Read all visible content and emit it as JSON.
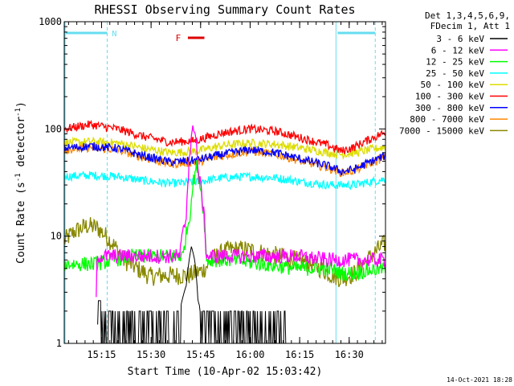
{
  "chart_data": {
    "type": "line",
    "title": "RHESSI Observing Summary Count Rates",
    "xlabel": "Start Time (10-Apr-02 15:03:42)",
    "ylabel_main": "Count Rate (s",
    "ylabel_sup1": "-1",
    "ylabel_mid": " detector",
    "ylabel_sup2": "-1",
    "ylabel_end": ")",
    "y_scale": "log",
    "ylim": [
      1,
      1000
    ],
    "xlim": [
      "15:03:42",
      "16:41:00"
    ],
    "x_ticks": [
      "15:15",
      "15:30",
      "15:45",
      "16:00",
      "16:15",
      "16:30"
    ],
    "x_tick_minutes": [
      11.3,
      26.3,
      41.3,
      56.3,
      71.3,
      86.3
    ],
    "x_range_minutes": [
      0,
      97.3
    ],
    "y_ticks": [
      "1",
      "10",
      "100",
      "1000"
    ],
    "y_tick_values": [
      1,
      10,
      100,
      1000
    ],
    "legend_header": [
      "Det 1,3,4,5,6,9,",
      "FDecim 1, Att 1"
    ],
    "legend_placement": "right",
    "timestamp": "14-Oct-2021 18:28",
    "flags": [
      {
        "label": "N",
        "start_min": 0,
        "end_min": 13.0,
        "color": "#66ddee"
      },
      {
        "label": "",
        "start_min": 82.3,
        "end_min": 94.2,
        "color": "#66ddee"
      },
      {
        "label": "F",
        "start_min": 35.5,
        "end_min": 40.5,
        "color": "#dd0000"
      }
    ],
    "series": [
      {
        "name": "3 - 6 keV",
        "color": "#000000",
        "x": [
          0,
          10,
          10.2,
          11,
          11.5,
          16,
          19,
          26,
          33,
          35,
          37,
          38.5,
          39.5,
          40.5,
          42,
          46,
          53,
          60,
          65,
          68,
          97
        ],
        "values": [
          0,
          0,
          2.5,
          2.5,
          1.6,
          1.7,
          1.7,
          1.7,
          1.7,
          2.0,
          3.5,
          8.0,
          6.0,
          2.5,
          1.7,
          1.6,
          1.6,
          1.6,
          1.6,
          0,
          0
        ]
      },
      {
        "name": "6 - 12 keV",
        "color": "#ff00ff",
        "x": [
          0,
          9.5,
          10,
          13,
          20,
          30,
          35,
          37,
          38.5,
          39.5,
          40.5,
          43,
          50,
          60,
          70,
          80,
          85,
          92,
          97
        ],
        "values": [
          0,
          0,
          6.5,
          6.5,
          6.5,
          6.5,
          6.5,
          15,
          80,
          110,
          40,
          6.5,
          6.5,
          6.5,
          6.5,
          6.0,
          6.0,
          6.0,
          6.0
        ]
      },
      {
        "name": "12 - 25 keV",
        "color": "#00ff00",
        "x": [
          0,
          10,
          20,
          30,
          36,
          38,
          40,
          43,
          50,
          60,
          70,
          75,
          80,
          84,
          88,
          92,
          97
        ],
        "values": [
          5.5,
          5.5,
          6.5,
          6.5,
          6.5,
          15,
          45,
          6.0,
          6.0,
          5.5,
          5.0,
          5.0,
          5.0,
          4.5,
          4.5,
          4.8,
          5.0
        ]
      },
      {
        "name": "25 - 50 keV",
        "color": "#00ffff",
        "x": [
          0,
          8,
          16,
          24,
          32,
          40,
          48,
          56,
          64,
          72,
          80,
          88,
          97
        ],
        "values": [
          36,
          37,
          36,
          33,
          31,
          32,
          35,
          36,
          35,
          32,
          30,
          30,
          34
        ]
      },
      {
        "name": "50 - 100 keV",
        "color": "#dddd00",
        "x": [
          0,
          8,
          16,
          24,
          32,
          40,
          48,
          56,
          64,
          72,
          80,
          84,
          88,
          97
        ],
        "values": [
          74,
          76,
          74,
          66,
          60,
          62,
          70,
          74,
          72,
          66,
          60,
          58,
          60,
          68
        ]
      },
      {
        "name": "100 - 300 keV",
        "color": "#ff0000",
        "x": [
          0,
          8,
          16,
          24,
          32,
          40,
          48,
          56,
          64,
          72,
          80,
          84,
          88,
          97
        ],
        "values": [
          100,
          110,
          100,
          85,
          75,
          78,
          92,
          100,
          95,
          82,
          70,
          62,
          68,
          92
        ]
      },
      {
        "name": "300 - 800 keV",
        "color": "#0000ff",
        "x": [
          0,
          8,
          16,
          24,
          32,
          40,
          48,
          56,
          64,
          72,
          80,
          84,
          88,
          97
        ],
        "values": [
          66,
          69,
          66,
          56,
          49,
          51,
          58,
          64,
          60,
          52,
          45,
          40,
          42,
          56
        ]
      },
      {
        "name": "800 - 7000 keV",
        "color": "#ff8800",
        "x": [
          0,
          8,
          16,
          24,
          32,
          40,
          48,
          56,
          64,
          72,
          80,
          84,
          88,
          97
        ],
        "values": [
          64,
          67,
          64,
          54,
          47,
          49,
          56,
          62,
          58,
          50,
          43,
          39,
          41,
          54
        ]
      },
      {
        "name": "7000 - 15000 keV",
        "color": "#888800",
        "x": [
          0,
          3,
          7,
          10,
          14,
          18,
          22,
          26,
          30,
          34,
          38,
          42,
          46,
          50,
          55,
          60,
          65,
          70,
          75,
          80,
          84,
          88,
          92,
          97
        ],
        "values": [
          9,
          11,
          12.5,
          12,
          9,
          6,
          5,
          4.2,
          4.3,
          4.3,
          4.3,
          4.8,
          6.5,
          7.5,
          7.5,
          7,
          6.5,
          6,
          5.5,
          4.5,
          4.0,
          4.5,
          6,
          8.5
        ]
      }
    ]
  }
}
